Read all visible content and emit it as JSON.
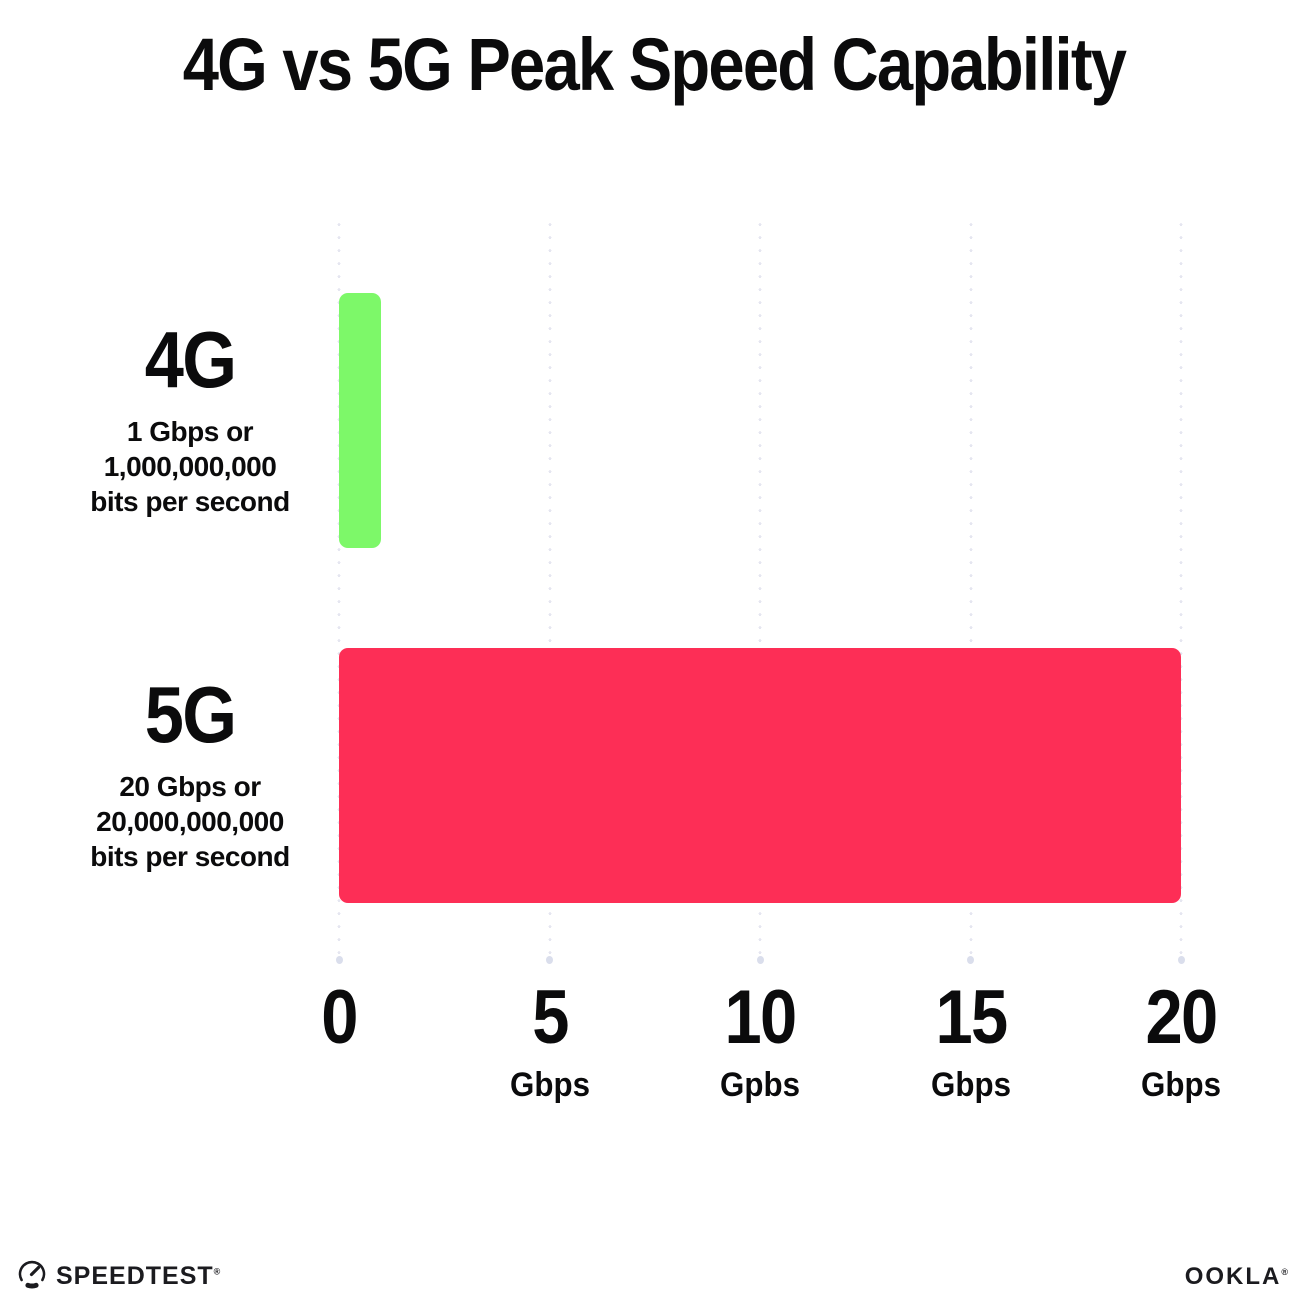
{
  "chart_data": {
    "type": "bar",
    "orientation": "horizontal",
    "title": "4G vs 5G Peak Speed Capability",
    "xlim": [
      0,
      20
    ],
    "grid": "vertical-dotted",
    "gridline_color": "#e5e6f0",
    "categories": [
      "4G",
      "5G"
    ],
    "series": [
      {
        "name": "Peak speed (Gbps)",
        "values": [
          1,
          20
        ]
      }
    ],
    "rows": [
      {
        "label": "4G",
        "value_gbps": 1,
        "description_lines": [
          "1 Gbps or",
          "1,000,000,000",
          "bits per second"
        ],
        "bar_color": "#7df869"
      },
      {
        "label": "5G",
        "value_gbps": 20,
        "description_lines": [
          "20 Gbps or",
          "20,000,000,000",
          "bits per second"
        ],
        "bar_color": "#fd2e56"
      }
    ],
    "x_ticks": [
      {
        "value": 0,
        "label": "0",
        "unit": ""
      },
      {
        "value": 5,
        "label": "5",
        "unit": "Gbps"
      },
      {
        "value": 10,
        "label": "10",
        "unit": "Gpbs"
      },
      {
        "value": 15,
        "label": "15",
        "unit": "Gbps"
      },
      {
        "value": 20,
        "label": "20",
        "unit": "Gbps"
      }
    ]
  },
  "footer": {
    "speedtest_label": "SPEEDTEST",
    "speedtest_trademark": "®",
    "ookla_label": "OOKLA",
    "ookla_trademark": "®"
  }
}
